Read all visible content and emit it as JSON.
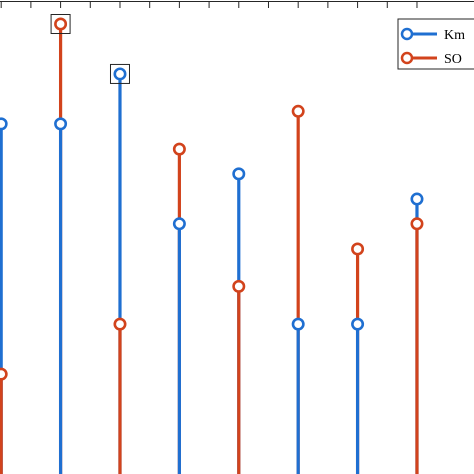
{
  "chart_data": {
    "type": "stem",
    "x": [
      1,
      2,
      3,
      4,
      5,
      6,
      7,
      8
    ],
    "xlim": [
      0.98,
      8.96
    ],
    "ylim": [
      0,
      1.02
    ],
    "grid": false,
    "legend_position": "top-right",
    "series": [
      {
        "name": "Km",
        "color": "#1f6fd1",
        "values": [
          0.778,
          0.778,
          0.889,
          0.556,
          0.667,
          0.333,
          0.333,
          0.611
        ]
      },
      {
        "name": "SO",
        "color": "#d2431c",
        "values": [
          0.222,
          1.0,
          0.333,
          0.722,
          0.417,
          0.806,
          0.5,
          0.556
        ]
      }
    ],
    "marked_points": [
      {
        "series": "SO",
        "x": 2
      },
      {
        "series": "Km",
        "x": 3
      }
    ]
  }
}
